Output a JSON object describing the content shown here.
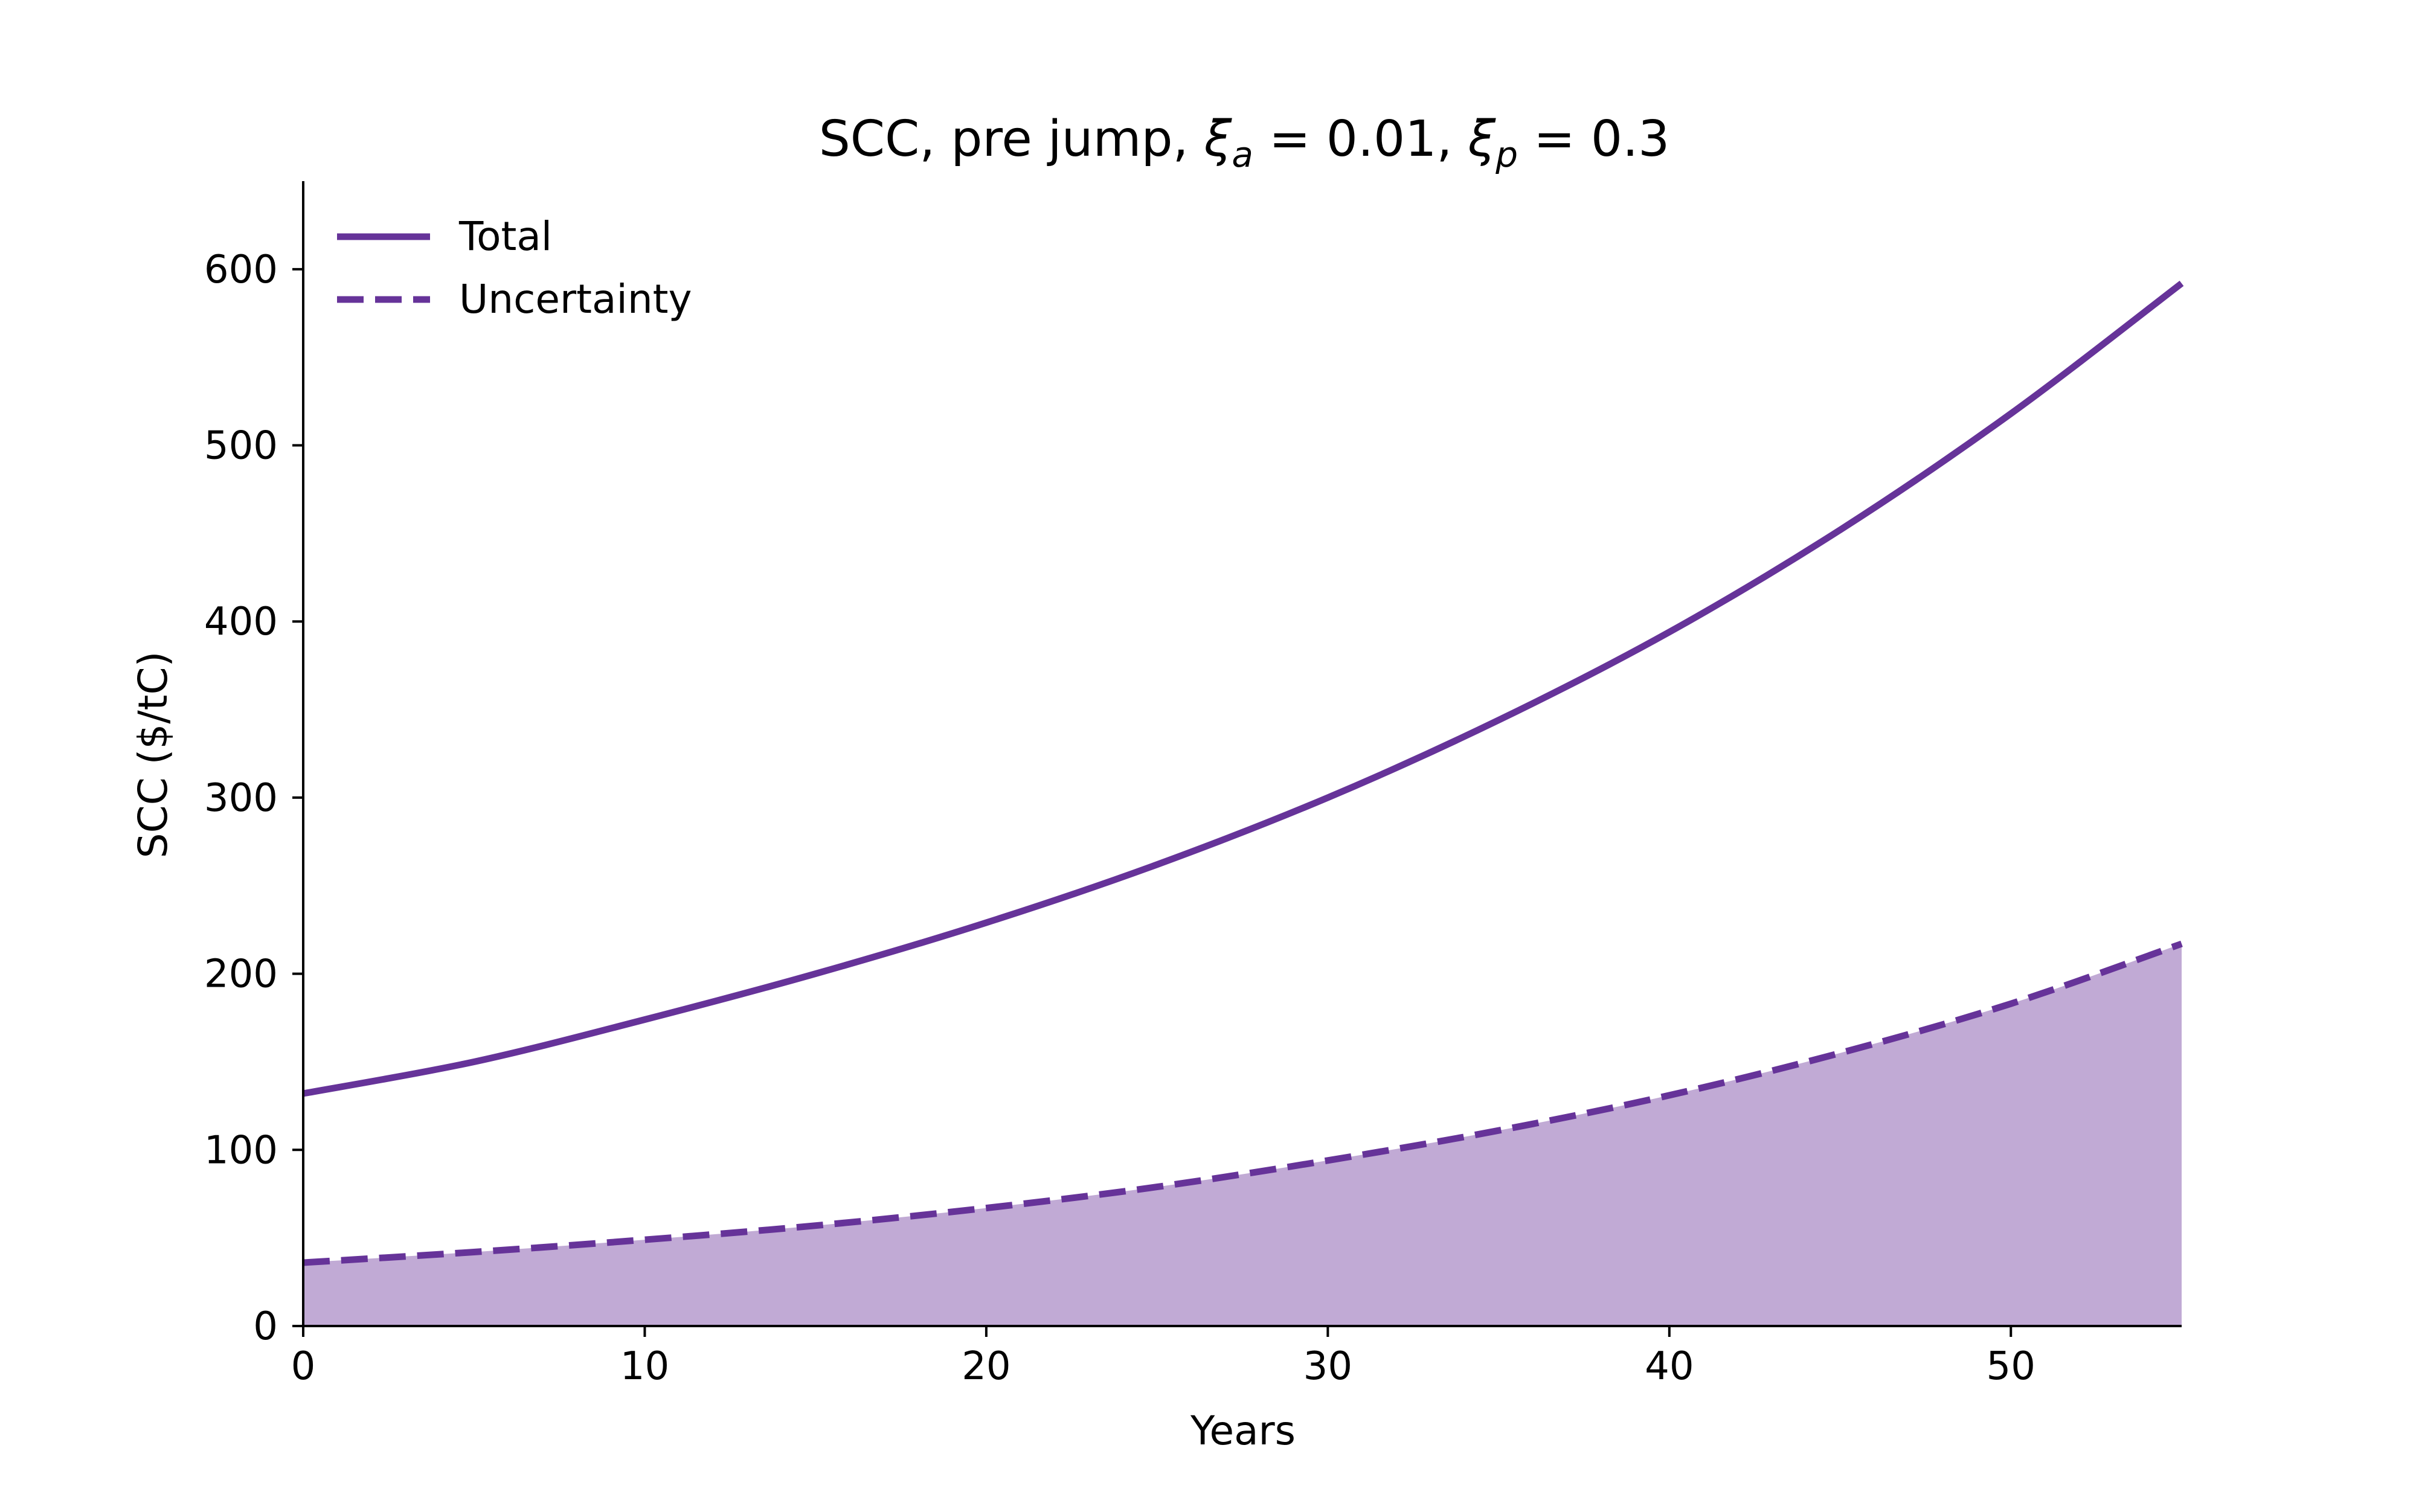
{
  "chart_data": {
    "type": "line",
    "title": "SCC, pre jump, ξ",
    "title_parts": {
      "prefix": "SCC, pre jump, ",
      "xi_symbol": "ξ",
      "xi_a_subscript": "a",
      "xi_a_value": " = 0.01, ",
      "xi_p_subscript": "p",
      "xi_p_value": " = 0.3"
    },
    "xlabel": "Years",
    "ylabel": "SCC ($/tC)",
    "xlim": [
      0,
      55
    ],
    "ylim": [
      0,
      650
    ],
    "xticks": [
      0,
      10,
      20,
      30,
      40,
      50
    ],
    "yticks": [
      0,
      100,
      200,
      300,
      400,
      500,
      600
    ],
    "grid": false,
    "legend_position": "top-left",
    "colors": {
      "line": "#663399",
      "fill": "#c1aad5",
      "axis": "#000000"
    },
    "x": [
      0,
      5,
      10,
      15,
      20,
      25,
      30,
      35,
      40,
      45,
      50,
      55
    ],
    "series": [
      {
        "name": "Total",
        "style": "solid",
        "values": [
          132,
          150,
          174,
          200,
          229,
          262,
          300,
          344,
          394,
          452,
          518,
          592
        ]
      },
      {
        "name": "Uncertainty",
        "style": "dashed",
        "filled": true,
        "values": [
          36,
          42,
          49,
          57,
          67,
          79,
          94,
          111,
          131,
          155,
          183,
          217
        ]
      }
    ]
  }
}
